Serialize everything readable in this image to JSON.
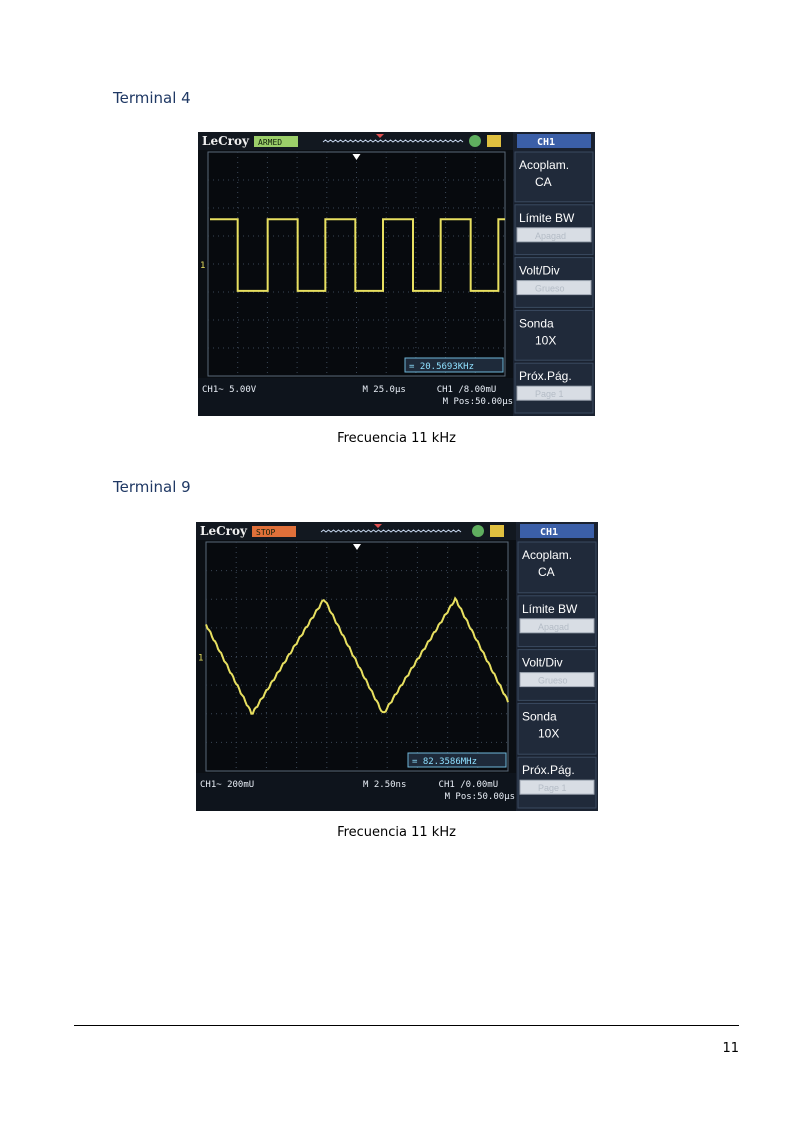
{
  "sections": [
    {
      "heading": "Terminal 4",
      "caption": "Frecuencia 11 kHz",
      "scope": {
        "brand": "LeCroy",
        "run_state": "ARMED",
        "run_state_color": "#9ccf6a",
        "channel": "CH1",
        "menu": [
          {
            "label": "Acoplam.",
            "value": "CA"
          },
          {
            "label": "Límite BW",
            "value": "Apagad"
          },
          {
            "label": "Volt/Div",
            "value": "Grueso"
          },
          {
            "label": "Sonda",
            "value": "10X"
          },
          {
            "label": "Próx.Pág.",
            "value": "Page 1"
          }
        ],
        "frequency": "= 20.5693KHz",
        "ch_scale": "CH1~ 5.00V",
        "timebase": "M 25.0µs",
        "trigger": "CH1 /8.00mU",
        "mpos": "M Pos:50.00µs",
        "waveform": "square",
        "trace_color": "#e8e060"
      }
    },
    {
      "heading": "Terminal 9",
      "caption": "Frecuencia 11 kHz",
      "scope": {
        "brand": "LeCroy",
        "run_state": "STOP",
        "run_state_color": "#e0703a",
        "channel": "CH1",
        "menu": [
          {
            "label": "Acoplam.",
            "value": "CA"
          },
          {
            "label": "Límite BW",
            "value": "Apagad"
          },
          {
            "label": "Volt/Div",
            "value": "Grueso"
          },
          {
            "label": "Sonda",
            "value": "10X"
          },
          {
            "label": "Próx.Pág.",
            "value": "Page 1"
          }
        ],
        "frequency": "= 82.3586MHz",
        "ch_scale": "CH1~ 200mU",
        "timebase": "M 2.50ns",
        "trigger": "CH1 /0.00mU",
        "mpos": "M Pos:50.00µs",
        "waveform": "triangle",
        "trace_color": "#e8e060"
      }
    }
  ],
  "footer": {
    "page_number": "11"
  }
}
